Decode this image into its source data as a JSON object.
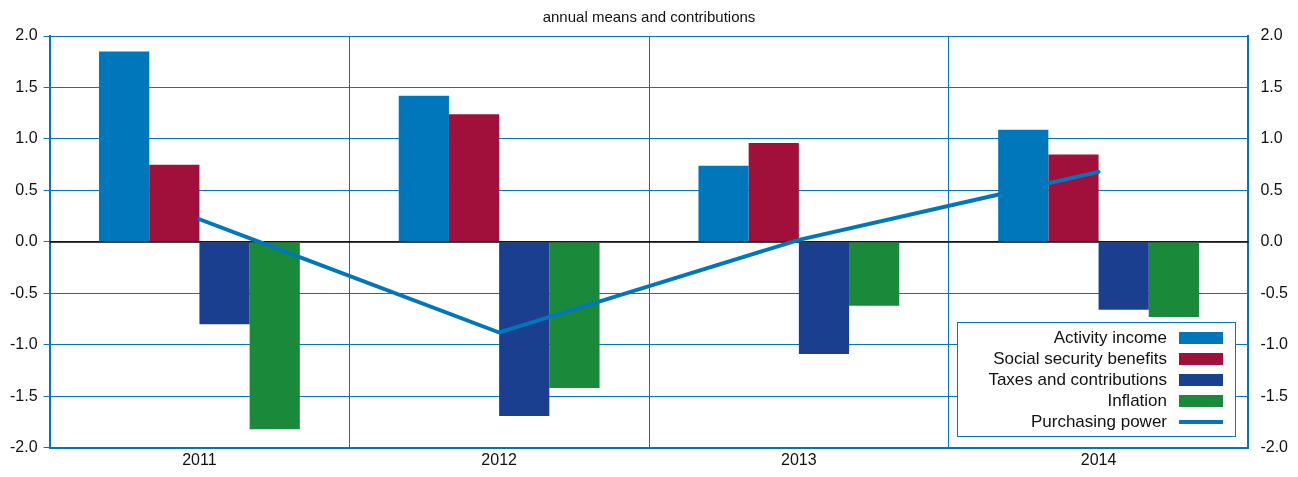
{
  "chart_data": {
    "type": "bar",
    "title": "annual  means and contributions",
    "categories": [
      "2011",
      "2012",
      "2013",
      "2014"
    ],
    "series": [
      {
        "name": "Activity income",
        "color": "#0077bb",
        "values": [
          1.85,
          1.42,
          0.74,
          1.09
        ]
      },
      {
        "name": "Social security benefits",
        "color": "#a0103a",
        "values": [
          0.75,
          1.24,
          0.96,
          0.85
        ]
      },
      {
        "name": "Taxes and contributions",
        "color": "#1a3f8f",
        "values": [
          -0.8,
          -1.69,
          -1.09,
          -0.66
        ]
      },
      {
        "name": "Inflation",
        "color": "#1a8a3a",
        "values": [
          -1.82,
          -1.42,
          -0.62,
          -0.73
        ]
      },
      {
        "name": "Purchasing power",
        "type": "line",
        "color": "#0077bb",
        "values": [
          0.22,
          -0.88,
          0.02,
          0.68
        ]
      }
    ],
    "ylim": [
      -2,
      2
    ],
    "yticks": [
      {
        "value": -2,
        "label": "-2.0"
      },
      {
        "value": -1.5,
        "label": "-1.5"
      },
      {
        "value": -1,
        "label": "-1.0"
      },
      {
        "value": -0.5,
        "label": "-0.5"
      },
      {
        "value": 0,
        "label": "0.0"
      },
      {
        "value": 0.5,
        "label": "0.5"
      },
      {
        "value": 1,
        "label": "1.0"
      },
      {
        "value": 1.5,
        "label": "1.5"
      },
      {
        "value": 2,
        "label": "2.0"
      }
    ],
    "y2lim": [
      -2,
      2
    ],
    "y2ticks": [
      {
        "value": -2,
        "label": "-2.0"
      },
      {
        "value": -1.5,
        "label": "-1.5"
      },
      {
        "value": -1,
        "label": "-1.0"
      },
      {
        "value": -0.5,
        "label": "-0.5"
      },
      {
        "value": 0,
        "label": "0.0"
      },
      {
        "value": 0.5,
        "label": "0.5"
      },
      {
        "value": 1,
        "label": "1.0"
      },
      {
        "value": 1.5,
        "label": "1.5"
      },
      {
        "value": 2,
        "label": "2.0"
      }
    ],
    "grid": true,
    "legend": "bottom right",
    "marker": "none"
  }
}
